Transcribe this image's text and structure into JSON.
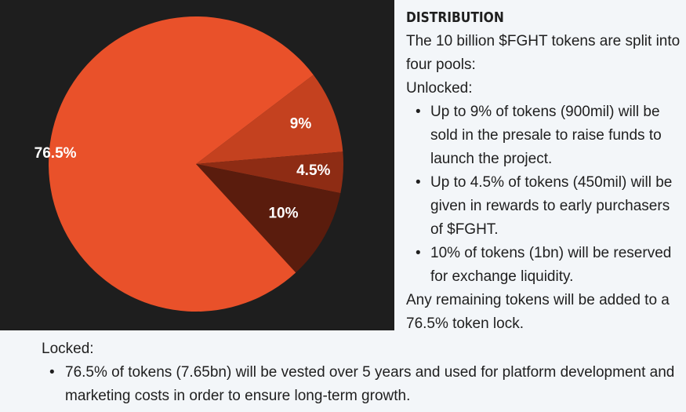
{
  "chart_data": {
    "type": "pie",
    "slices": [
      {
        "label": "9%",
        "value": 9,
        "color": "#c4411f"
      },
      {
        "label": "4.5%",
        "value": 4.5,
        "color": "#8e2c14"
      },
      {
        "label": "10%",
        "value": 10,
        "color": "#5a1c0d"
      },
      {
        "label": "76.5%",
        "value": 76.5,
        "color": "#e9512a"
      }
    ]
  },
  "distribution": {
    "heading": "DISTRIBUTION",
    "intro": "The 10 billion $FGHT tokens are split into four pools:",
    "unlocked_label": "Unlocked:",
    "unlocked_items": [
      "Up to 9% of tokens (900mil) will be sold in the presale to raise funds to launch the project.",
      "Up to 4.5% of tokens (450mil) will be given in rewards to early purchasers of $FGHT.",
      "10% of tokens (1bn) will be reserved for exchange liquidity."
    ],
    "remaining": "Any remaining tokens will be added to a 76.5% token lock.",
    "locked_label": "Locked:",
    "locked_items": [
      "76.5% of tokens (7.65bn) will be vested over 5 years and used for platform development and marketing costs in order to ensure long-term growth."
    ]
  }
}
